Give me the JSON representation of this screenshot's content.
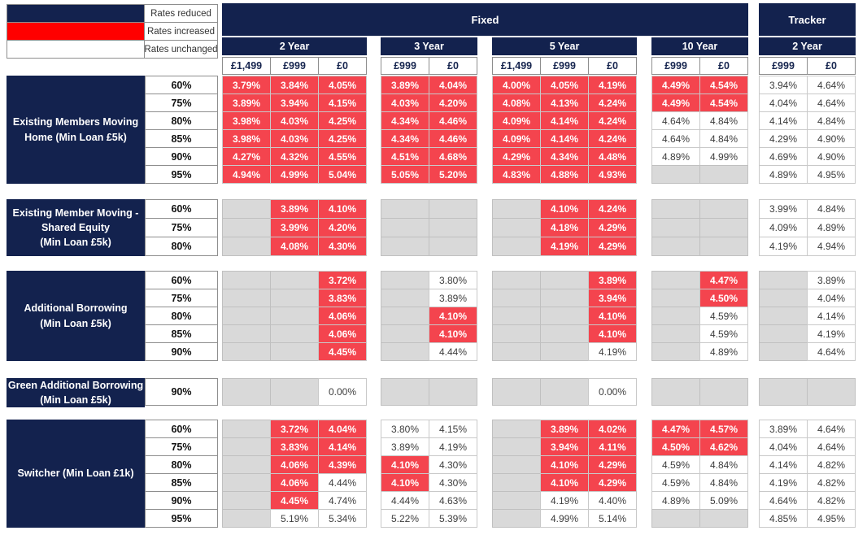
{
  "colors": {
    "navy": "#13224E",
    "legend_increased_red": "#FF0000",
    "rate_cell_red": "#F4444E",
    "unavailable_gray": "#D9D9D9"
  },
  "legend": {
    "items": [
      {
        "swatch": "navy",
        "label": "Rates reduced"
      },
      {
        "swatch": "red",
        "label": "Rates increased"
      },
      {
        "swatch": "white",
        "label": "Rates unchanged"
      }
    ]
  },
  "header": {
    "fixed_label": "Fixed",
    "tracker_label": "Tracker",
    "year_groups": [
      {
        "section": "fixed",
        "label": "2 Year",
        "fees": [
          "£1,499",
          "£999",
          "£0"
        ]
      },
      {
        "section": "fixed",
        "label": "3 Year",
        "fees": [
          "£999",
          "£0"
        ]
      },
      {
        "section": "fixed",
        "label": "5 Year",
        "fees": [
          "£1,499",
          "£999",
          "£0"
        ]
      },
      {
        "section": "fixed",
        "label": "10 Year",
        "fees": [
          "£999",
          "£0"
        ]
      },
      {
        "section": "tracker",
        "label": "2 Year",
        "fees": [
          "£999",
          "£0"
        ]
      }
    ]
  },
  "cell_legend": {
    "r": "rate on red (increased) fill",
    "w": "rate on white fill",
    "g": "not available (gray fill)"
  },
  "blocks": [
    {
      "name_lines": [
        "Existing Members Moving",
        "Home (Min Loan £5k)"
      ],
      "rows": [
        {
          "ltv": "60%",
          "cells": [
            "r|3.79%",
            "r|3.84%",
            "r|4.05%",
            "r|3.89%",
            "r|4.04%",
            "r|4.00%",
            "r|4.05%",
            "r|4.19%",
            "r|4.49%",
            "r|4.54%",
            "w|3.94%",
            "w|4.64%"
          ]
        },
        {
          "ltv": "75%",
          "cells": [
            "r|3.89%",
            "r|3.94%",
            "r|4.15%",
            "r|4.03%",
            "r|4.20%",
            "r|4.08%",
            "r|4.13%",
            "r|4.24%",
            "r|4.49%",
            "r|4.54%",
            "w|4.04%",
            "w|4.64%"
          ]
        },
        {
          "ltv": "80%",
          "cells": [
            "r|3.98%",
            "r|4.03%",
            "r|4.25%",
            "r|4.34%",
            "r|4.46%",
            "r|4.09%",
            "r|4.14%",
            "r|4.24%",
            "w|4.64%",
            "w|4.84%",
            "w|4.14%",
            "w|4.84%"
          ]
        },
        {
          "ltv": "85%",
          "cells": [
            "r|3.98%",
            "r|4.03%",
            "r|4.25%",
            "r|4.34%",
            "r|4.46%",
            "r|4.09%",
            "r|4.14%",
            "r|4.24%",
            "w|4.64%",
            "w|4.84%",
            "w|4.29%",
            "w|4.90%"
          ]
        },
        {
          "ltv": "90%",
          "cells": [
            "r|4.27%",
            "r|4.32%",
            "r|4.55%",
            "r|4.51%",
            "r|4.68%",
            "r|4.29%",
            "r|4.34%",
            "r|4.48%",
            "w|4.89%",
            "w|4.99%",
            "w|4.69%",
            "w|4.90%"
          ]
        },
        {
          "ltv": "95%",
          "cells": [
            "r|4.94%",
            "r|4.99%",
            "r|5.04%",
            "r|5.05%",
            "r|5.20%",
            "r|4.83%",
            "r|4.88%",
            "r|4.93%",
            "g|",
            "g|",
            "w|4.89%",
            "w|4.95%"
          ]
        }
      ]
    },
    {
      "name_lines": [
        "Existing Member Moving -",
        "Shared Equity",
        "(Min Loan £5k)"
      ],
      "rows": [
        {
          "ltv": "60%",
          "cells": [
            "g|",
            "r|3.89%",
            "r|4.10%",
            "g|",
            "g|",
            "g|",
            "r|4.10%",
            "r|4.24%",
            "g|",
            "g|",
            "w|3.99%",
            "w|4.84%"
          ]
        },
        {
          "ltv": "75%",
          "cells": [
            "g|",
            "r|3.99%",
            "r|4.20%",
            "g|",
            "g|",
            "g|",
            "r|4.18%",
            "r|4.29%",
            "g|",
            "g|",
            "w|4.09%",
            "w|4.89%"
          ]
        },
        {
          "ltv": "80%",
          "cells": [
            "g|",
            "r|4.08%",
            "r|4.30%",
            "g|",
            "g|",
            "g|",
            "r|4.19%",
            "r|4.29%",
            "g|",
            "g|",
            "w|4.19%",
            "w|4.94%"
          ]
        }
      ]
    },
    {
      "name_lines": [
        "Additional Borrowing",
        "(Min Loan £5k)"
      ],
      "rows": [
        {
          "ltv": "60%",
          "cells": [
            "g|",
            "g|",
            "r|3.72%",
            "g|",
            "w|3.80%",
            "g|",
            "g|",
            "r|3.89%",
            "g|",
            "r|4.47%",
            "g|",
            "w|3.89%"
          ]
        },
        {
          "ltv": "75%",
          "cells": [
            "g|",
            "g|",
            "r|3.83%",
            "g|",
            "w|3.89%",
            "g|",
            "g|",
            "r|3.94%",
            "g|",
            "r|4.50%",
            "g|",
            "w|4.04%"
          ]
        },
        {
          "ltv": "80%",
          "cells": [
            "g|",
            "g|",
            "r|4.06%",
            "g|",
            "r|4.10%",
            "g|",
            "g|",
            "r|4.10%",
            "g|",
            "w|4.59%",
            "g|",
            "w|4.14%"
          ]
        },
        {
          "ltv": "85%",
          "cells": [
            "g|",
            "g|",
            "r|4.06%",
            "g|",
            "r|4.10%",
            "g|",
            "g|",
            "r|4.10%",
            "g|",
            "w|4.59%",
            "g|",
            "w|4.19%"
          ]
        },
        {
          "ltv": "90%",
          "cells": [
            "g|",
            "g|",
            "r|4.45%",
            "g|",
            "w|4.44%",
            "g|",
            "g|",
            "w|4.19%",
            "g|",
            "w|4.89%",
            "g|",
            "w|4.64%"
          ]
        }
      ]
    },
    {
      "name_lines": [
        "Green Additional Borrowing",
        "(Min Loan £5k)"
      ],
      "rows": [
        {
          "ltv": "90%",
          "cells": [
            "g|",
            "g|",
            "w|0.00%",
            "g|",
            "g|",
            "g|",
            "g|",
            "w|0.00%",
            "g|",
            "g|",
            "g|",
            "g|"
          ]
        }
      ]
    },
    {
      "name_lines": [
        "Switcher (Min Loan £1k)"
      ],
      "rows": [
        {
          "ltv": "60%",
          "cells": [
            "g|",
            "r|3.72%",
            "r|4.04%",
            "w|3.80%",
            "w|4.15%",
            "g|",
            "r|3.89%",
            "r|4.02%",
            "r|4.47%",
            "r|4.57%",
            "w|3.89%",
            "w|4.64%"
          ]
        },
        {
          "ltv": "75%",
          "cells": [
            "g|",
            "r|3.83%",
            "r|4.14%",
            "w|3.89%",
            "w|4.19%",
            "g|",
            "r|3.94%",
            "r|4.11%",
            "r|4.50%",
            "r|4.62%",
            "w|4.04%",
            "w|4.64%"
          ]
        },
        {
          "ltv": "80%",
          "cells": [
            "g|",
            "r|4.06%",
            "r|4.39%",
            "r|4.10%",
            "w|4.30%",
            "g|",
            "r|4.10%",
            "r|4.29%",
            "w|4.59%",
            "w|4.84%",
            "w|4.14%",
            "w|4.82%"
          ]
        },
        {
          "ltv": "85%",
          "cells": [
            "g|",
            "r|4.06%",
            "w|4.44%",
            "r|4.10%",
            "w|4.30%",
            "g|",
            "r|4.10%",
            "r|4.29%",
            "w|4.59%",
            "w|4.84%",
            "w|4.19%",
            "w|4.82%"
          ]
        },
        {
          "ltv": "90%",
          "cells": [
            "g|",
            "r|4.45%",
            "w|4.74%",
            "w|4.44%",
            "w|4.63%",
            "g|",
            "w|4.19%",
            "w|4.40%",
            "w|4.89%",
            "w|5.09%",
            "w|4.64%",
            "w|4.82%"
          ]
        },
        {
          "ltv": "95%",
          "cells": [
            "g|",
            "w|5.19%",
            "w|5.34%",
            "w|5.22%",
            "w|5.39%",
            "g|",
            "w|4.99%",
            "w|5.14%",
            "g|",
            "g|",
            "w|4.85%",
            "w|4.95%"
          ]
        }
      ]
    }
  ]
}
